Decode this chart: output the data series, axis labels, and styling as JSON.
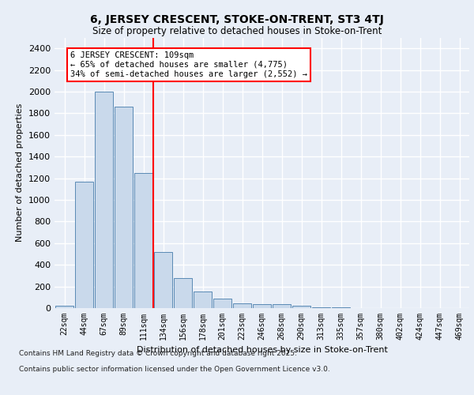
{
  "title1": "6, JERSEY CRESCENT, STOKE-ON-TRENT, ST3 4TJ",
  "title2": "Size of property relative to detached houses in Stoke-on-Trent",
  "xlabel": "Distribution of detached houses by size in Stoke-on-Trent",
  "ylabel": "Number of detached properties",
  "categories": [
    "22sqm",
    "44sqm",
    "67sqm",
    "89sqm",
    "111sqm",
    "134sqm",
    "156sqm",
    "178sqm",
    "201sqm",
    "223sqm",
    "246sqm",
    "268sqm",
    "290sqm",
    "313sqm",
    "335sqm",
    "357sqm",
    "380sqm",
    "402sqm",
    "424sqm",
    "447sqm",
    "469sqm"
  ],
  "values": [
    25,
    1170,
    2000,
    1860,
    1245,
    520,
    275,
    150,
    90,
    45,
    40,
    35,
    20,
    8,
    4,
    3,
    2,
    2,
    1,
    1,
    1
  ],
  "bar_color": "#c9d9eb",
  "bar_edge_color": "#5a8ab5",
  "bg_color": "#e8eef7",
  "grid_color": "#ffffff",
  "vline_x_index": 4,
  "vline_color": "red",
  "annotation_line1": "6 JERSEY CRESCENT: 109sqm",
  "annotation_line2": "← 65% of detached houses are smaller (4,775)",
  "annotation_line3": "34% of semi-detached houses are larger (2,552) →",
  "annotation_box_color": "white",
  "annotation_box_edge": "red",
  "ylim": [
    0,
    2500
  ],
  "yticks": [
    0,
    200,
    400,
    600,
    800,
    1000,
    1200,
    1400,
    1600,
    1800,
    2000,
    2200,
    2400
  ],
  "footer1": "Contains HM Land Registry data © Crown copyright and database right 2025.",
  "footer2": "Contains public sector information licensed under the Open Government Licence v3.0."
}
